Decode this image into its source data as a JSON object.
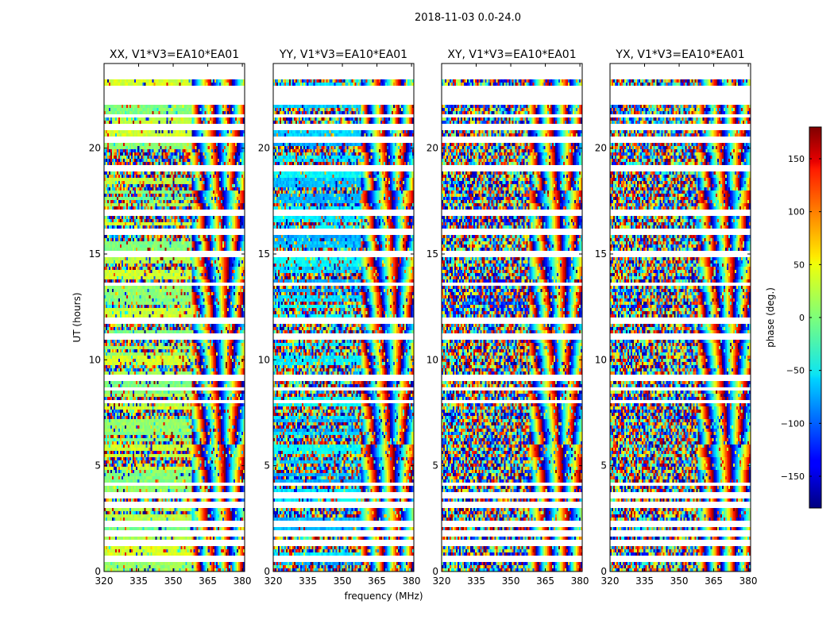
{
  "chart_data": {
    "type": "heatmap",
    "title": "2018-11-03 0.0-24.0",
    "xlabel": "frequency (MHz)",
    "ylabel": "UT (hours)",
    "xlim": [
      320,
      381
    ],
    "ylim": [
      0,
      24
    ],
    "xticks": [
      320,
      335,
      350,
      365,
      380
    ],
    "yticks": [
      0,
      5,
      10,
      15,
      20
    ],
    "panels": [
      {
        "name": "XX",
        "title": "XX, V1*V3=EA10*EA01",
        "coherent_phase_deg": 15,
        "coherence": 0.85
      },
      {
        "name": "YY",
        "title": "YY, V1*V3=EA10*EA01",
        "coherent_phase_deg": -60,
        "coherence": 0.8
      },
      {
        "name": "XY",
        "title": "XY, V1*V3=EA10*EA01",
        "coherent_phase_deg": -130,
        "coherence": 0.25
      },
      {
        "name": "YX",
        "title": "YX, V1*V3=EA10*EA01",
        "coherent_phase_deg": -120,
        "coherence": 0.2
      }
    ],
    "colorbar": {
      "label": "phase (deg.)",
      "range": [
        -180,
        180
      ],
      "ticks": [
        -150,
        -100,
        -50,
        0,
        50,
        100,
        150
      ],
      "tick_labels": [
        "−150",
        "−100",
        "−50",
        "0",
        "50",
        "100",
        "150"
      ],
      "colormap": "jet"
    },
    "flagged_ut_ranges": [
      [
        0.45,
        0.55
      ],
      [
        0.65,
        0.72
      ],
      [
        1.3,
        1.45
      ],
      [
        1.75,
        1.85
      ],
      [
        2.2,
        2.4
      ],
      [
        3.1,
        3.25
      ],
      [
        3.55,
        3.65
      ],
      [
        4.05,
        4.15
      ],
      [
        8.0,
        8.08
      ],
      [
        8.55,
        8.65
      ],
      [
        9.0,
        9.2
      ],
      [
        11.1,
        11.2
      ],
      [
        11.85,
        12.0
      ],
      [
        13.5,
        13.6
      ],
      [
        14.9,
        15.05
      ],
      [
        16.0,
        16.2
      ],
      [
        16.9,
        17.1
      ],
      [
        18.95,
        19.05
      ],
      [
        20.3,
        20.45
      ],
      [
        20.9,
        21.05
      ],
      [
        21.5,
        21.55
      ],
      [
        22.1,
        22.25
      ],
      [
        22.3,
        22.95
      ],
      [
        23.25,
        23.55
      ],
      [
        23.55,
        24.0
      ]
    ]
  }
}
